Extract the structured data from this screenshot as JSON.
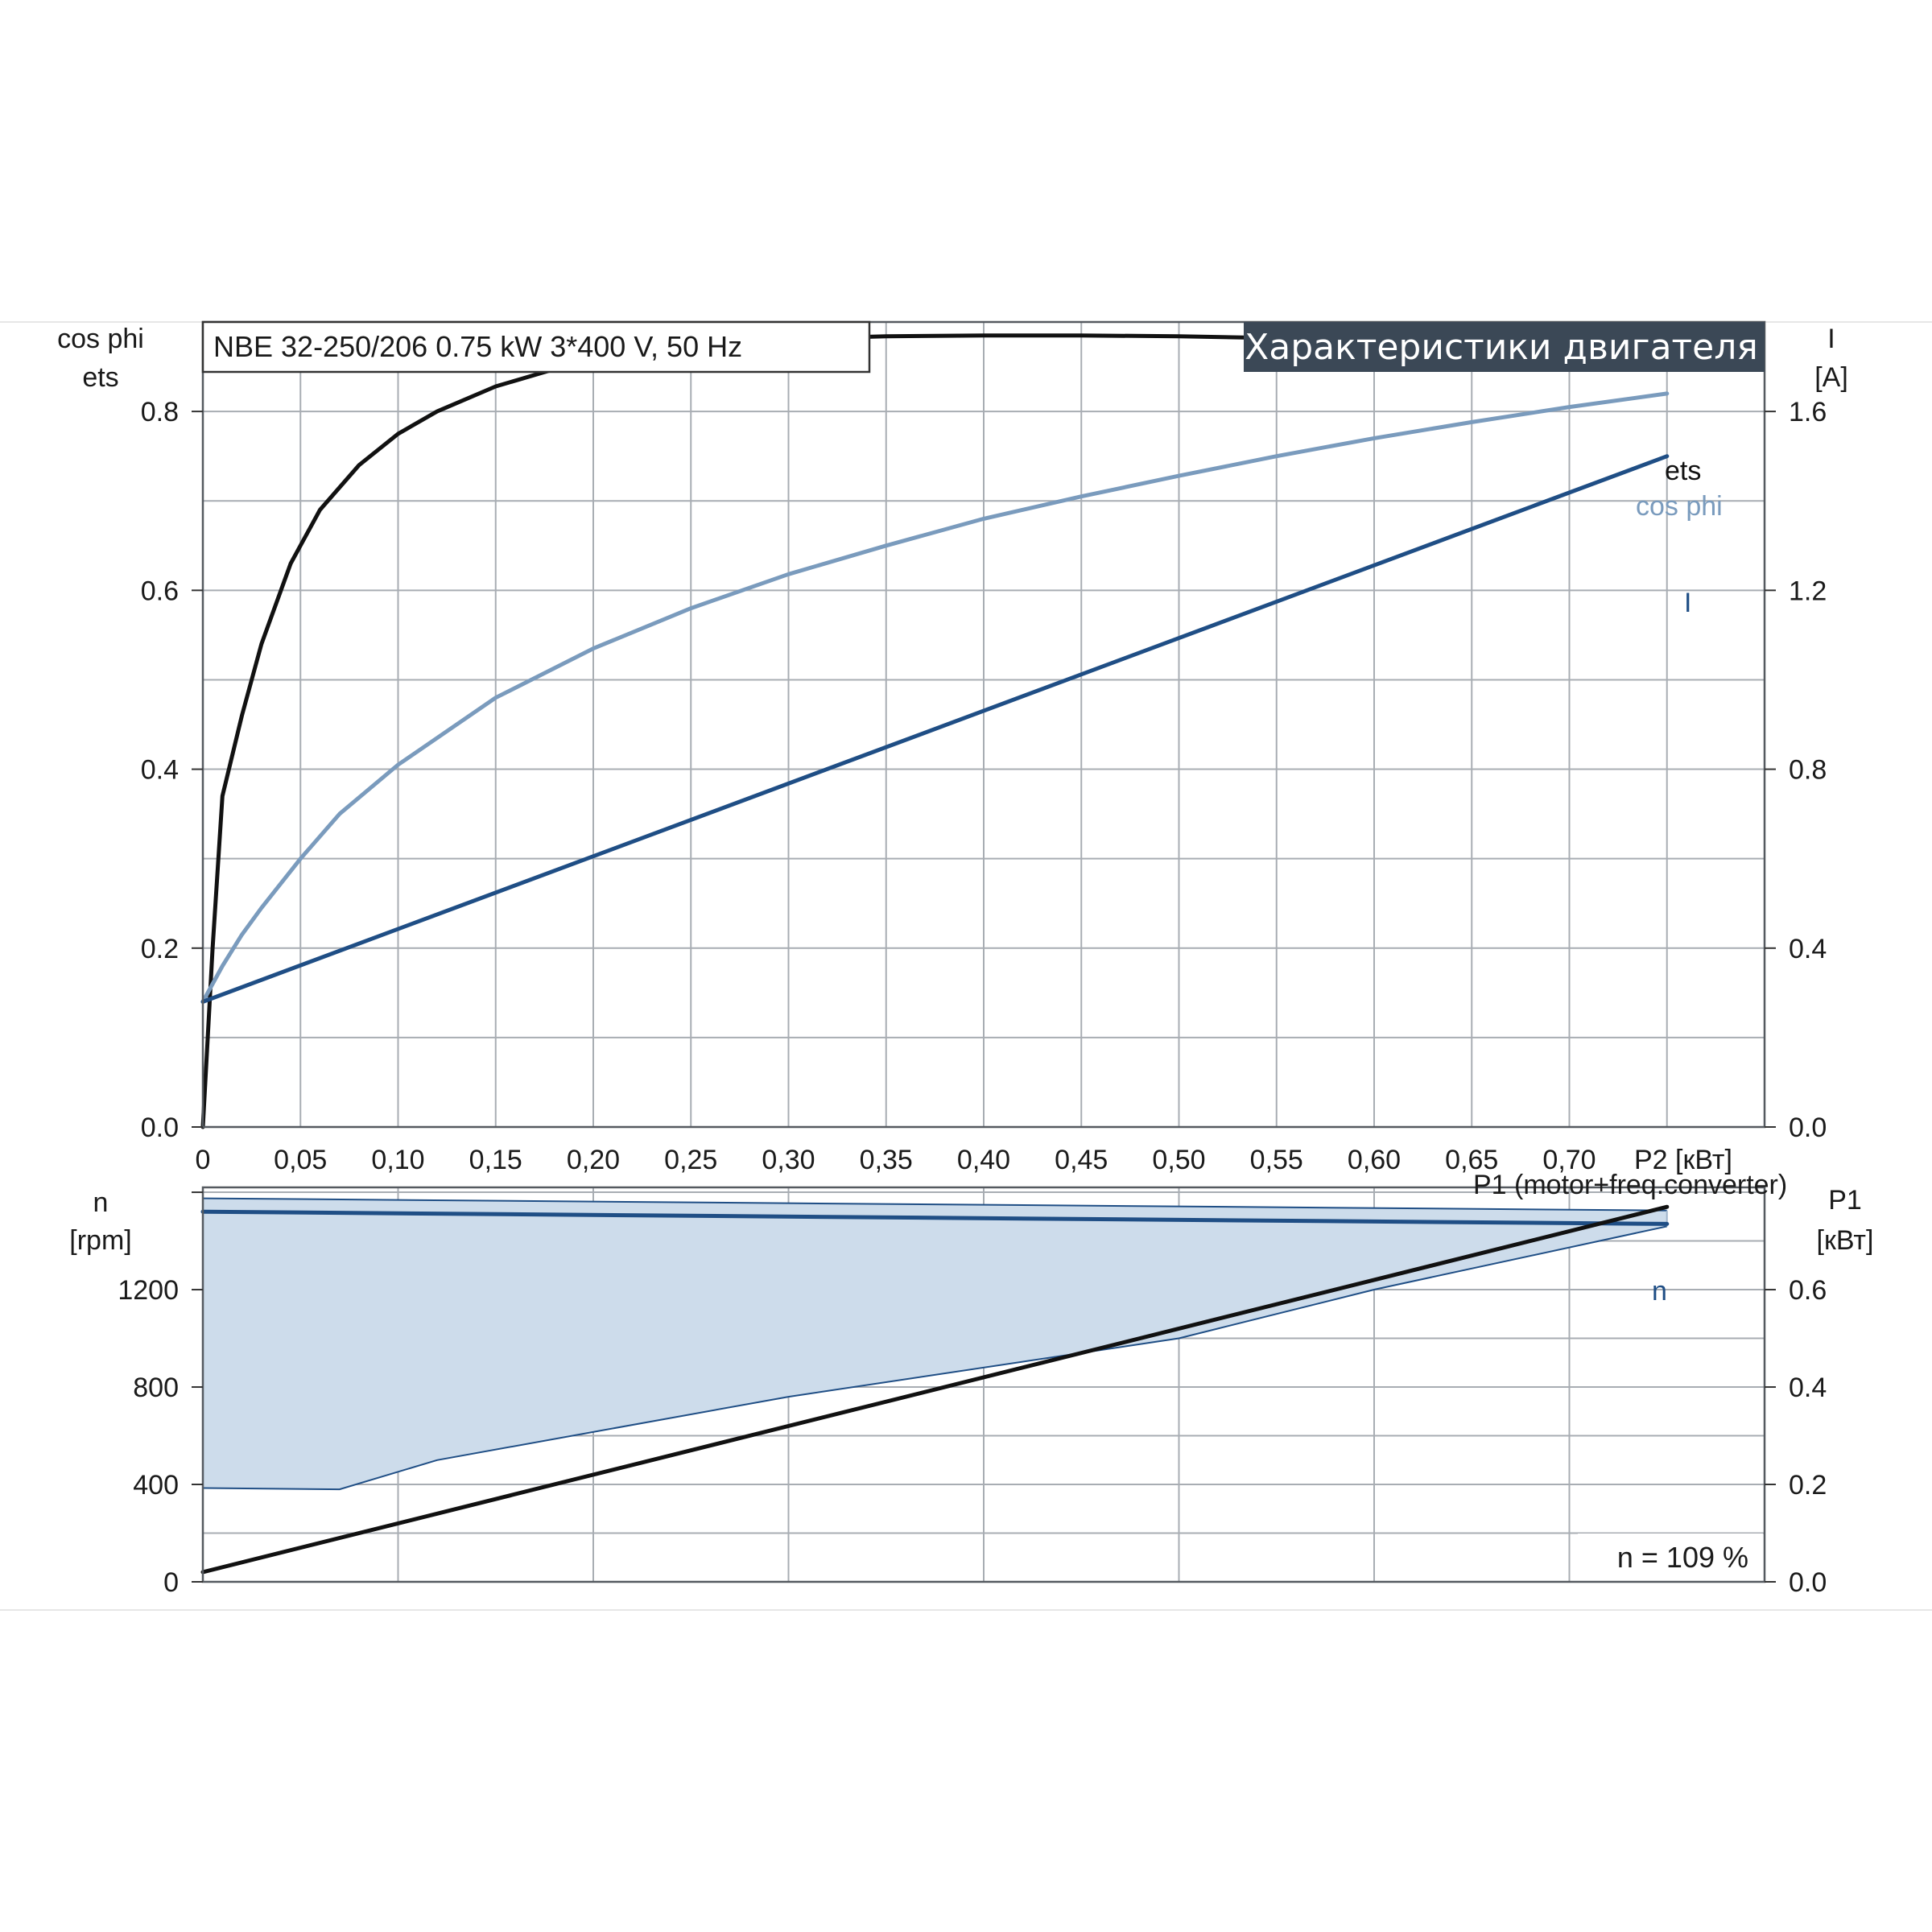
{
  "chart_data": [
    {
      "type": "line",
      "title": "Характеристики двигателя",
      "subtitle": "NBE 32-250/206   0.75 kW   3*400 V, 50 Hz",
      "xlabel": "P2 [кВт]",
      "xlim": [
        0,
        0.8
      ],
      "xticks": [
        "0",
        "0,05",
        "0,10",
        "0,15",
        "0,20",
        "0,25",
        "0,30",
        "0,35",
        "0,40",
        "0,45",
        "0,50",
        "0,55",
        "0,60",
        "0,65",
        "0,70"
      ],
      "ylabel_left": [
        "cos phi",
        "ets"
      ],
      "ylim_left": [
        0,
        0.9
      ],
      "yticks_left": [
        "0.0",
        "0.2",
        "0.4",
        "0.6",
        "0.8"
      ],
      "ylabel_right": [
        "I",
        "[A]"
      ],
      "ylim_right": [
        0,
        1.8
      ],
      "yticks_right": [
        "0.0",
        "0.4",
        "0.8",
        "1.2",
        "1.6"
      ],
      "grid": true,
      "series": [
        {
          "name": "ets",
          "axis": "left",
          "color": "#111111",
          "x": [
            0,
            0.005,
            0.01,
            0.02,
            0.03,
            0.045,
            0.06,
            0.08,
            0.1,
            0.12,
            0.15,
            0.2,
            0.25,
            0.3,
            0.35,
            0.4,
            0.45,
            0.5,
            0.55,
            0.6,
            0.65,
            0.7,
            0.75
          ],
          "values": [
            0,
            0.2,
            0.37,
            0.46,
            0.54,
            0.63,
            0.69,
            0.74,
            0.775,
            0.8,
            0.828,
            0.86,
            0.875,
            0.881,
            0.884,
            0.885,
            0.885,
            0.884,
            0.882,
            0.879,
            0.875,
            0.87,
            0.865
          ]
        },
        {
          "name": "cos phi",
          "axis": "left",
          "color": "#7a9bbd",
          "x": [
            0,
            0.01,
            0.02,
            0.03,
            0.05,
            0.07,
            0.1,
            0.15,
            0.2,
            0.25,
            0.3,
            0.35,
            0.4,
            0.45,
            0.5,
            0.55,
            0.6,
            0.65,
            0.7,
            0.75
          ],
          "values": [
            0.14,
            0.18,
            0.215,
            0.245,
            0.3,
            0.35,
            0.405,
            0.48,
            0.535,
            0.58,
            0.618,
            0.65,
            0.68,
            0.705,
            0.728,
            0.75,
            0.77,
            0.788,
            0.805,
            0.82
          ]
        },
        {
          "name": "I",
          "axis": "right",
          "color": "#1f4e85",
          "x": [
            0,
            0.75
          ],
          "values": [
            0.28,
            1.5
          ]
        }
      ]
    },
    {
      "type": "line",
      "xlim": [
        0,
        0.8
      ],
      "ylabel_left": [
        "n",
        "[rpm]"
      ],
      "ylim_left": [
        0,
        1620
      ],
      "yticks_left": [
        "0",
        "400",
        "800",
        "1200"
      ],
      "ylabel_right": [
        "P1",
        "[кВт]"
      ],
      "ylim_right": [
        0,
        0.81
      ],
      "yticks_right": [
        "0.0",
        "0.2",
        "0.4",
        "0.6"
      ],
      "grid": true,
      "annotation": "n = 109 %",
      "band_color": "#cddceb",
      "band_edge_color": "#1f4e85",
      "band": {
        "x_upper": [
          0,
          0.75
        ],
        "upper": [
          1520,
          1470
        ],
        "x_lower": [
          0,
          0.07,
          0.12,
          0.3,
          0.5,
          0.6,
          0.75
        ],
        "lower": [
          385,
          380,
          500,
          760,
          1000,
          1200,
          1460
        ]
      },
      "series": [
        {
          "name": "n",
          "axis": "left",
          "color": "#1f4e85",
          "x": [
            0,
            0.75
          ],
          "values": [
            1520,
            1470
          ]
        },
        {
          "name": "P1 (motor+freq.converter)",
          "axis": "right",
          "color": "#111111",
          "x": [
            0,
            0.75
          ],
          "values": [
            0.02,
            0.77
          ]
        }
      ]
    }
  ]
}
